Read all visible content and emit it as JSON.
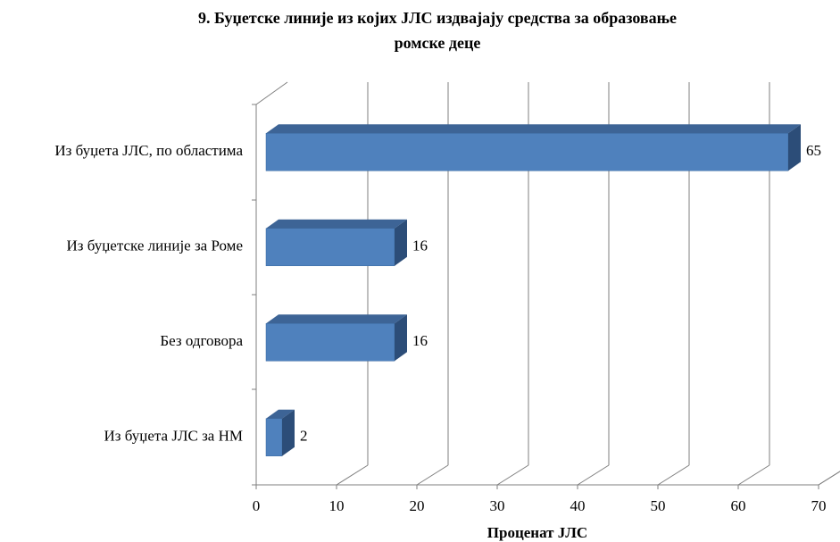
{
  "chart_data": {
    "type": "bar3d_horizontal",
    "title": [
      "9. Буџетске линије из којих ЈЛС издвајају средства за образовање",
      "ромске деце"
    ],
    "categories": [
      "Из буџета ЈЛС, по областима",
      "Из буџетске линије за Роме",
      "Без одговора",
      "Из буџета ЈЛС за НМ"
    ],
    "values": [
      65,
      16,
      16,
      2
    ],
    "color": "#4f81bd",
    "xlim": [
      0,
      70
    ],
    "xticks": [
      0,
      10,
      20,
      30,
      40,
      50,
      60,
      70
    ],
    "xlabel": "Проценат ЈЛС",
    "grid": true
  }
}
